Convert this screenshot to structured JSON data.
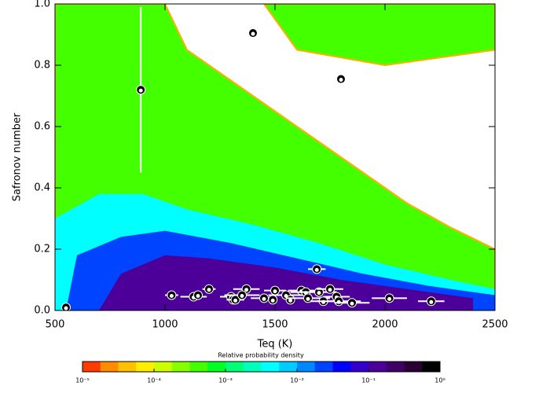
{
  "chart_data": {
    "type": "scatter",
    "x_label": "Teq (K)",
    "y_label": "Safronov number",
    "xlim": [
      500,
      2500
    ],
    "ylim": [
      0,
      1
    ],
    "xticks": [
      500,
      1000,
      1500,
      2000,
      2500
    ],
    "yticks": [
      {
        "value": 0,
        "label": "0.0"
      },
      0.2,
      0.4,
      0.6,
      0.8,
      {
        "value": 1,
        "label": "1.0"
      }
    ],
    "density_regions": [
      {
        "level": 0.0005,
        "x": [
          500,
          500,
          1000,
          1100,
          1300,
          1500,
          1700,
          1900,
          2100,
          2300,
          2500,
          2500
        ],
        "y": [
          0,
          1,
          1,
          0.85,
          0.75,
          0.65,
          0.55,
          0.45,
          0.35,
          0.27,
          0.2,
          0
        ]
      },
      {
        "level": 0.0005,
        "x": [
          1450,
          2500,
          2500,
          2000,
          1600
        ],
        "y": [
          1,
          1,
          0.85,
          0.8,
          0.85
        ]
      },
      {
        "level": 0.005,
        "x": [
          500,
          500,
          700,
          900,
          1100,
          1400,
          1700,
          2000,
          2300,
          2500,
          2500
        ],
        "y": [
          0,
          0.3,
          0.38,
          0.38,
          0.33,
          0.28,
          0.22,
          0.15,
          0.1,
          0.07,
          0
        ]
      },
      {
        "level": 0.03,
        "x": [
          550,
          600,
          800,
          1000,
          1300,
          1600,
          1900,
          2200,
          2500,
          2500
        ],
        "y": [
          0,
          0.18,
          0.24,
          0.26,
          0.22,
          0.17,
          0.12,
          0.08,
          0.05,
          0
        ]
      },
      {
        "level": 0.1,
        "x": [
          700,
          800,
          1000,
          1200,
          1500,
          1800,
          2100,
          2400,
          2400
        ],
        "y": [
          0,
          0.12,
          0.18,
          0.17,
          0.14,
          0.1,
          0.07,
          0.04,
          0
        ]
      }
    ],
    "series": [
      {
        "x": [
          550,
          890,
          1400,
          1800,
          1690,
          1030,
          1130,
          1150,
          1200,
          1300,
          1310,
          1320,
          1370,
          1350,
          1450,
          1490,
          1500,
          1550,
          1570,
          1620,
          1640,
          1650,
          1700,
          1720,
          1750,
          1780,
          1790,
          1850,
          2020,
          2210
        ],
        "y": [
          0.01,
          0.72,
          0.905,
          0.755,
          0.135,
          0.05,
          0.045,
          0.05,
          0.07,
          0.045,
          0.035,
          0.035,
          0.07,
          0.05,
          0.04,
          0.035,
          0.065,
          0.05,
          0.035,
          0.065,
          0.06,
          0.04,
          0.06,
          0.03,
          0.07,
          0.045,
          0.03,
          0.025,
          0.04,
          0.03
        ],
        "xerr": [
          null,
          null,
          null,
          null,
          40,
          30,
          60,
          null,
          30,
          50,
          null,
          40,
          60,
          80,
          60,
          null,
          50,
          80,
          null,
          60,
          70,
          100,
          80,
          60,
          60,
          60,
          100,
          80,
          80,
          60
        ],
        "yerr": [
          null,
          0.27,
          null,
          null,
          null,
          null,
          null,
          null,
          null,
          null,
          null,
          null,
          null,
          null,
          null,
          null,
          null,
          null,
          null,
          null,
          null,
          null,
          null,
          null,
          null,
          null,
          null,
          null,
          null,
          null
        ]
      }
    ],
    "colorbar": {
      "title": "Relative probability density",
      "log": true,
      "lim": [
        1e-05,
        1
      ],
      "colors": [
        "#ff3c00",
        "#ff8c00",
        "#ffc000",
        "#ffee00",
        "#ccff00",
        "#88ff00",
        "#44ff00",
        "#00ff22",
        "#00ff77",
        "#00ffbb",
        "#00ffff",
        "#00ccff",
        "#0088ff",
        "#0044ff",
        "#0000ff",
        "#3300cc",
        "#4d0099",
        "#400066",
        "#2a0033",
        "#000000"
      ],
      "ticks": [
        {
          "value": 1e-05,
          "label": "10⁻⁵"
        },
        {
          "value": 0.0001,
          "label": "10⁻⁴"
        },
        {
          "value": 0.001,
          "label": "10⁻³"
        },
        {
          "value": 0.01,
          "label": "10⁻²"
        },
        {
          "value": 0.1,
          "label": "10⁻¹"
        },
        {
          "value": 1,
          "label": "10⁰"
        }
      ]
    }
  }
}
